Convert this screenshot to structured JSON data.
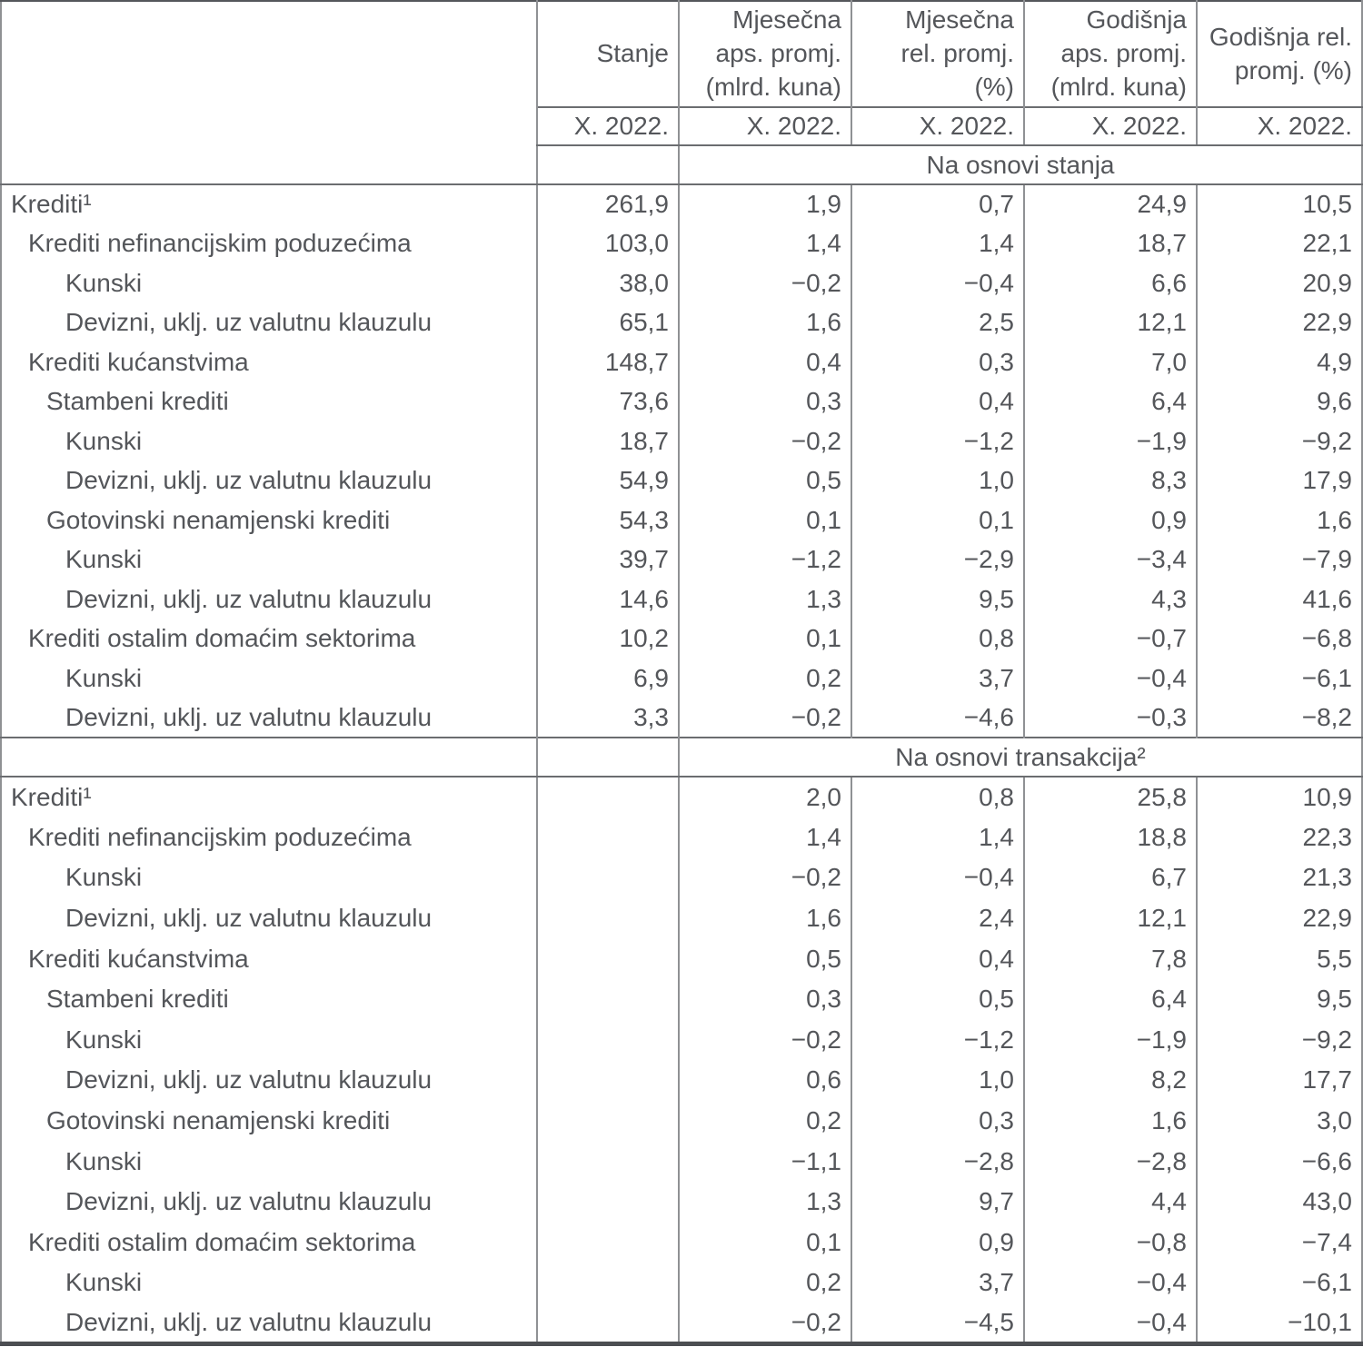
{
  "table": {
    "header": {
      "columns": [
        "Stanje",
        "Mjesečna\naps. promj.\n(mlrd. kuna)",
        "Mjesečna\nrel. promj.\n(%)",
        "Godišnja\naps. promj.\n(mlrd. kuna)",
        "Godišnja rel.\npromj. (%)"
      ],
      "periods": [
        "X. 2022.",
        "X. 2022.",
        "X. 2022.",
        "X. 2022.",
        "X. 2022."
      ]
    },
    "sections": [
      {
        "title": "Na osnovi stanja",
        "rows": [
          {
            "label": "Krediti¹",
            "indent": 0,
            "values": [
              "261,9",
              "1,9",
              "0,7",
              "24,9",
              "10,5"
            ]
          },
          {
            "label": "Krediti nefinancijskim poduzećima",
            "indent": 1,
            "values": [
              "103,0",
              "1,4",
              "1,4",
              "18,7",
              "22,1"
            ]
          },
          {
            "label": "Kunski",
            "indent": 3,
            "values": [
              "38,0",
              "−0,2",
              "−0,4",
              "6,6",
              "20,9"
            ]
          },
          {
            "label": "Devizni, uklj. uz valutnu klauzulu",
            "indent": 3,
            "values": [
              "65,1",
              "1,6",
              "2,5",
              "12,1",
              "22,9"
            ]
          },
          {
            "label": "Krediti kućanstvima",
            "indent": 1,
            "values": [
              "148,7",
              "0,4",
              "0,3",
              "7,0",
              "4,9"
            ]
          },
          {
            "label": "Stambeni krediti",
            "indent": 2,
            "values": [
              "73,6",
              "0,3",
              "0,4",
              "6,4",
              "9,6"
            ]
          },
          {
            "label": "Kunski",
            "indent": 3,
            "values": [
              "18,7",
              "−0,2",
              "−1,2",
              "−1,9",
              "−9,2"
            ]
          },
          {
            "label": "Devizni, uklj. uz valutnu klauzulu",
            "indent": 3,
            "values": [
              "54,9",
              "0,5",
              "1,0",
              "8,3",
              "17,9"
            ]
          },
          {
            "label": "Gotovinski nenamjenski krediti",
            "indent": 2,
            "values": [
              "54,3",
              "0,1",
              "0,1",
              "0,9",
              "1,6"
            ]
          },
          {
            "label": "Kunski",
            "indent": 3,
            "values": [
              "39,7",
              "−1,2",
              "−2,9",
              "−3,4",
              "−7,9"
            ]
          },
          {
            "label": "Devizni, uklj. uz valutnu klauzulu",
            "indent": 3,
            "values": [
              "14,6",
              "1,3",
              "9,5",
              "4,3",
              "41,6"
            ]
          },
          {
            "label": "Krediti ostalim domaćim sektorima",
            "indent": 1,
            "values": [
              "10,2",
              "0,1",
              "0,8",
              "−0,7",
              "−6,8"
            ]
          },
          {
            "label": "Kunski",
            "indent": 3,
            "values": [
              "6,9",
              "0,2",
              "3,7",
              "−0,4",
              "−6,1"
            ]
          },
          {
            "label": "Devizni, uklj. uz valutnu klauzulu",
            "indent": 3,
            "values": [
              "3,3",
              "−0,2",
              "−4,6",
              "−0,3",
              "−8,2"
            ]
          }
        ]
      },
      {
        "title": "Na osnovi transakcija²",
        "rows": [
          {
            "label": "Krediti¹",
            "indent": 0,
            "values": [
              "",
              "2,0",
              "0,8",
              "25,8",
              "10,9"
            ]
          },
          {
            "label": "Krediti nefinancijskim poduzećima",
            "indent": 1,
            "values": [
              "",
              "1,4",
              "1,4",
              "18,8",
              "22,3"
            ]
          },
          {
            "label": "Kunski",
            "indent": 3,
            "values": [
              "",
              "−0,2",
              "−0,4",
              "6,7",
              "21,3"
            ]
          },
          {
            "label": "Devizni, uklj. uz valutnu klauzulu",
            "indent": 3,
            "values": [
              "",
              "1,6",
              "2,4",
              "12,1",
              "22,9"
            ]
          },
          {
            "label": "Krediti kućanstvima",
            "indent": 1,
            "values": [
              "",
              "0,5",
              "0,4",
              "7,8",
              "5,5"
            ]
          },
          {
            "label": "Stambeni krediti",
            "indent": 2,
            "values": [
              "",
              "0,3",
              "0,5",
              "6,4",
              "9,5"
            ]
          },
          {
            "label": "Kunski",
            "indent": 3,
            "values": [
              "",
              "−0,2",
              "−1,2",
              "−1,9",
              "−9,2"
            ]
          },
          {
            "label": "Devizni, uklj. uz valutnu klauzulu",
            "indent": 3,
            "values": [
              "",
              "0,6",
              "1,0",
              "8,2",
              "17,7"
            ]
          },
          {
            "label": "Gotovinski nenamjenski krediti",
            "indent": 2,
            "values": [
              "",
              "0,2",
              "0,3",
              "1,6",
              "3,0"
            ]
          },
          {
            "label": "Kunski",
            "indent": 3,
            "values": [
              "",
              "−1,1",
              "−2,8",
              "−2,8",
              "−6,6"
            ]
          },
          {
            "label": "Devizni, uklj. uz valutnu klauzulu",
            "indent": 3,
            "values": [
              "",
              "1,3",
              "9,7",
              "4,4",
              "43,0"
            ]
          },
          {
            "label": "Krediti ostalim domaćim sektorima",
            "indent": 1,
            "values": [
              "",
              "0,1",
              "0,9",
              "−0,8",
              "−7,4"
            ]
          },
          {
            "label": "Kunski",
            "indent": 3,
            "values": [
              "",
              "0,2",
              "3,7",
              "−0,4",
              "−6,1"
            ]
          },
          {
            "label": "Devizni, uklj. uz valutnu klauzulu",
            "indent": 3,
            "values": [
              "",
              "−0,2",
              "−4,5",
              "−0,4",
              "−10,1"
            ]
          }
        ]
      }
    ],
    "colors": {
      "text": "#54565a",
      "grid_line": "#8f9194",
      "rule_line": "#6b6d70",
      "background": "#ffffff"
    }
  }
}
